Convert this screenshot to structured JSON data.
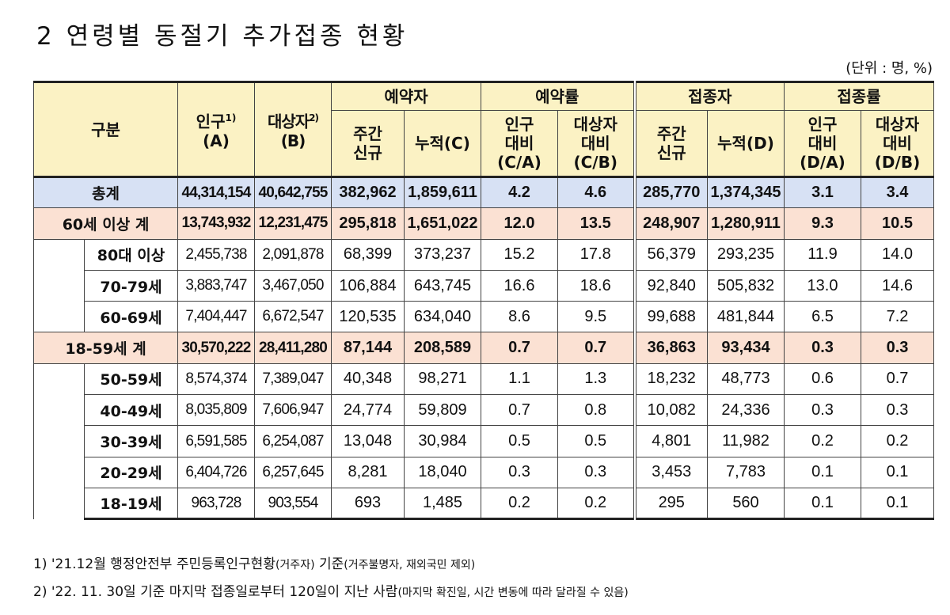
{
  "title": "2 연령별 동절기 추가접종 현황",
  "unit": "(단위 : 명, %)",
  "headers": {
    "category": "구분",
    "population": "인구",
    "population_note": "1)",
    "population_code": "(A)",
    "target": "대상자",
    "target_note": "2)",
    "target_code": "(B)",
    "reserved": "예약자",
    "reserve_rate": "예약률",
    "vaccinated": "접종자",
    "vaccination_rate": "접종률",
    "weekly_new_1": "주간",
    "weekly_new_2": "신규",
    "cumulative_c": "누적(C)",
    "pop_ratio_1": "인구",
    "pop_ratio_2": "대비",
    "pop_ratio_c": "(C/A)",
    "target_ratio_1": "대상자",
    "target_ratio_2": "대비",
    "target_ratio_c": "(C/B)",
    "weekly_new_d1": "주간",
    "weekly_new_d2": "신규",
    "cumulative_d": "누적(D)",
    "pop_ratio_d1": "인구",
    "pop_ratio_d2": "대비",
    "pop_ratio_d": "(D/A)",
    "target_ratio_d1": "대상자",
    "target_ratio_d2": "대비",
    "target_ratio_d": "(D/B)"
  },
  "rows": [
    {
      "label": "총계",
      "type": "total",
      "values": [
        "44,314,154",
        "40,642,755",
        "382,962",
        "1,859,611",
        "4.2",
        "4.6",
        "285,770",
        "1,374,345",
        "3.1",
        "3.4"
      ]
    },
    {
      "label": "60세 이상 계",
      "type": "sub",
      "values": [
        "13,743,932",
        "12,231,475",
        "295,818",
        "1,651,022",
        "12.0",
        "13.5",
        "248,907",
        "1,280,911",
        "9.3",
        "10.5"
      ]
    },
    {
      "label": "80대 이상",
      "type": "data",
      "values": [
        "2,455,738",
        "2,091,878",
        "68,399",
        "373,237",
        "15.2",
        "17.8",
        "56,379",
        "293,235",
        "11.9",
        "14.0"
      ]
    },
    {
      "label": "70-79세",
      "type": "data",
      "values": [
        "3,883,747",
        "3,467,050",
        "106,884",
        "643,745",
        "16.6",
        "18.6",
        "92,840",
        "505,832",
        "13.0",
        "14.6"
      ]
    },
    {
      "label": "60-69세",
      "type": "data",
      "values": [
        "7,404,447",
        "6,672,547",
        "120,535",
        "634,040",
        "8.6",
        "9.5",
        "99,688",
        "481,844",
        "6.5",
        "7.2"
      ]
    },
    {
      "label": "18-59세 계",
      "type": "sub",
      "values": [
        "30,570,222",
        "28,411,280",
        "87,144",
        "208,589",
        "0.7",
        "0.7",
        "36,863",
        "93,434",
        "0.3",
        "0.3"
      ]
    },
    {
      "label": "50-59세",
      "type": "data",
      "values": [
        "8,574,374",
        "7,389,047",
        "40,348",
        "98,271",
        "1.1",
        "1.3",
        "18,232",
        "48,773",
        "0.6",
        "0.7"
      ]
    },
    {
      "label": "40-49세",
      "type": "data",
      "values": [
        "8,035,809",
        "7,606,947",
        "24,774",
        "59,809",
        "0.7",
        "0.8",
        "10,082",
        "24,336",
        "0.3",
        "0.3"
      ]
    },
    {
      "label": "30-39세",
      "type": "data",
      "values": [
        "6,591,585",
        "6,254,087",
        "13,048",
        "30,984",
        "0.5",
        "0.5",
        "4,801",
        "11,982",
        "0.2",
        "0.2"
      ]
    },
    {
      "label": "20-29세",
      "type": "data",
      "values": [
        "6,404,726",
        "6,257,645",
        "8,281",
        "18,040",
        "0.3",
        "0.3",
        "3,453",
        "7,783",
        "0.1",
        "0.1"
      ]
    },
    {
      "label": "18-19세",
      "type": "data",
      "values": [
        "963,728",
        "903,554",
        "693",
        "1,485",
        "0.2",
        "0.2",
        "295",
        "560",
        "0.1",
        "0.1"
      ]
    }
  ],
  "footnotes": [
    {
      "prefix": "1) '21.12월 행정안전부 주민등록인구현황",
      "small1": "(거주자)",
      "mid": " 기준",
      "small2": "(거주불명자, 재외국민 제외)"
    },
    {
      "prefix": "2) '22. 11. 30일 기준 마지막 접종일로부터 120일이 지난 사람",
      "small1": "(마지막 확진일, 시간 변동에 따라 달라질 수 있음)",
      "mid": "",
      "small2": ""
    }
  ]
}
